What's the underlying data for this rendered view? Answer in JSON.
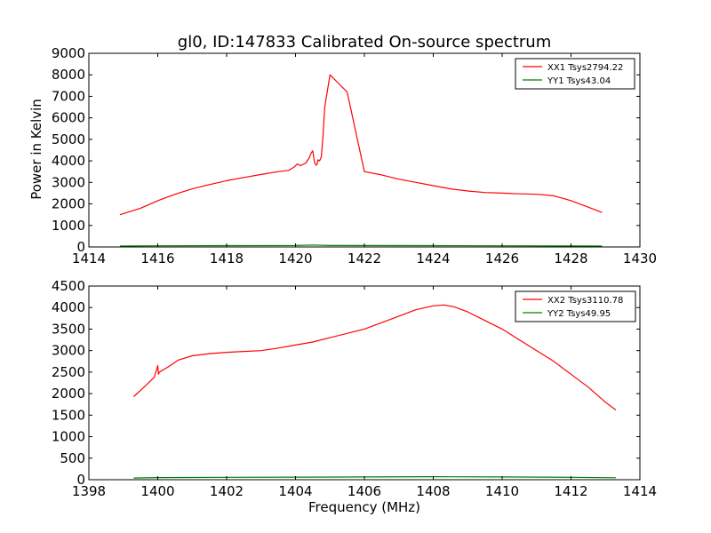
{
  "chart_data": [
    {
      "type": "line",
      "title": "gl0, ID:147833 Calibrated On-source spectrum",
      "xlabel": "",
      "ylabel": "Power in Kelvin",
      "xlim": [
        1414,
        1430
      ],
      "ylim": [
        0,
        9000
      ],
      "xticks": [
        1414,
        1416,
        1418,
        1420,
        1422,
        1424,
        1426,
        1428,
        1430
      ],
      "yticks": [
        0,
        1000,
        2000,
        3000,
        4000,
        5000,
        6000,
        7000,
        8000,
        9000
      ],
      "legend_position": "top-right",
      "series": [
        {
          "name": "XX1 Tsys2794.22",
          "color": "#ff0000",
          "x": [
            1414.9,
            1415.5,
            1416.0,
            1416.5,
            1417.0,
            1417.5,
            1418.0,
            1418.5,
            1419.0,
            1419.5,
            1419.8,
            1419.95,
            1420.05,
            1420.15,
            1420.3,
            1420.4,
            1420.45,
            1420.5,
            1420.55,
            1420.6,
            1420.63,
            1420.65,
            1420.7,
            1420.75,
            1420.8,
            1420.85,
            1421.0,
            1421.5,
            1422.0,
            1422.5,
            1423.0,
            1423.5,
            1424.0,
            1424.5,
            1425.0,
            1425.5,
            1426.0,
            1426.5,
            1427.0,
            1427.5,
            1428.0,
            1428.5,
            1428.9
          ],
          "values": [
            1500,
            1800,
            2150,
            2450,
            2700,
            2900,
            3080,
            3230,
            3370,
            3500,
            3560,
            3700,
            3850,
            3780,
            3900,
            4150,
            4350,
            4470,
            3950,
            3800,
            3850,
            4050,
            4000,
            4200,
            5200,
            6500,
            8000,
            7200,
            3500,
            3350,
            3150,
            3000,
            2850,
            2700,
            2600,
            2530,
            2500,
            2470,
            2450,
            2380,
            2150,
            1850,
            1600
          ]
        },
        {
          "name": "YY1 Tsys43.04",
          "color": "#008000",
          "x": [
            1414.9,
            1416.0,
            1418.0,
            1420.0,
            1420.5,
            1421.0,
            1424.0,
            1426.0,
            1428.0,
            1428.9
          ],
          "values": [
            40,
            55,
            60,
            65,
            90,
            65,
            60,
            55,
            45,
            40
          ]
        }
      ]
    },
    {
      "type": "line",
      "title": "",
      "xlabel": "Frequency (MHz)",
      "ylabel": "",
      "xlim": [
        1398,
        1414
      ],
      "ylim": [
        0,
        4500
      ],
      "xticks": [
        1398,
        1400,
        1402,
        1404,
        1406,
        1408,
        1410,
        1412,
        1414
      ],
      "yticks": [
        0,
        500,
        1000,
        1500,
        2000,
        2500,
        3000,
        3500,
        4000,
        4500
      ],
      "legend_position": "top-right",
      "series": [
        {
          "name": "XX2 Tsys3110.78",
          "color": "#ff0000",
          "x": [
            1399.3,
            1399.6,
            1399.9,
            1400.0,
            1400.02,
            1400.05,
            1400.3,
            1400.6,
            1401.0,
            1401.5,
            1402.0,
            1402.5,
            1403.0,
            1403.5,
            1404.0,
            1404.5,
            1405.0,
            1405.5,
            1406.0,
            1406.5,
            1407.0,
            1407.5,
            1408.0,
            1408.3,
            1408.6,
            1409.0,
            1409.5,
            1410.0,
            1410.5,
            1411.0,
            1411.5,
            1412.0,
            1412.5,
            1413.0,
            1413.3
          ],
          "values": [
            1930,
            2150,
            2380,
            2650,
            2450,
            2500,
            2620,
            2780,
            2880,
            2930,
            2960,
            2980,
            3000,
            3060,
            3130,
            3200,
            3300,
            3400,
            3500,
            3650,
            3800,
            3950,
            4040,
            4060,
            4020,
            3900,
            3700,
            3500,
            3250,
            3000,
            2750,
            2450,
            2150,
            1800,
            1620
          ]
        },
        {
          "name": "YY2 Tsys49.95",
          "color": "#008000",
          "x": [
            1399.3,
            1400.0,
            1402.0,
            1404.0,
            1406.0,
            1408.0,
            1410.0,
            1412.0,
            1413.3
          ],
          "values": [
            40,
            50,
            55,
            60,
            65,
            70,
            65,
            55,
            45
          ]
        }
      ]
    }
  ]
}
